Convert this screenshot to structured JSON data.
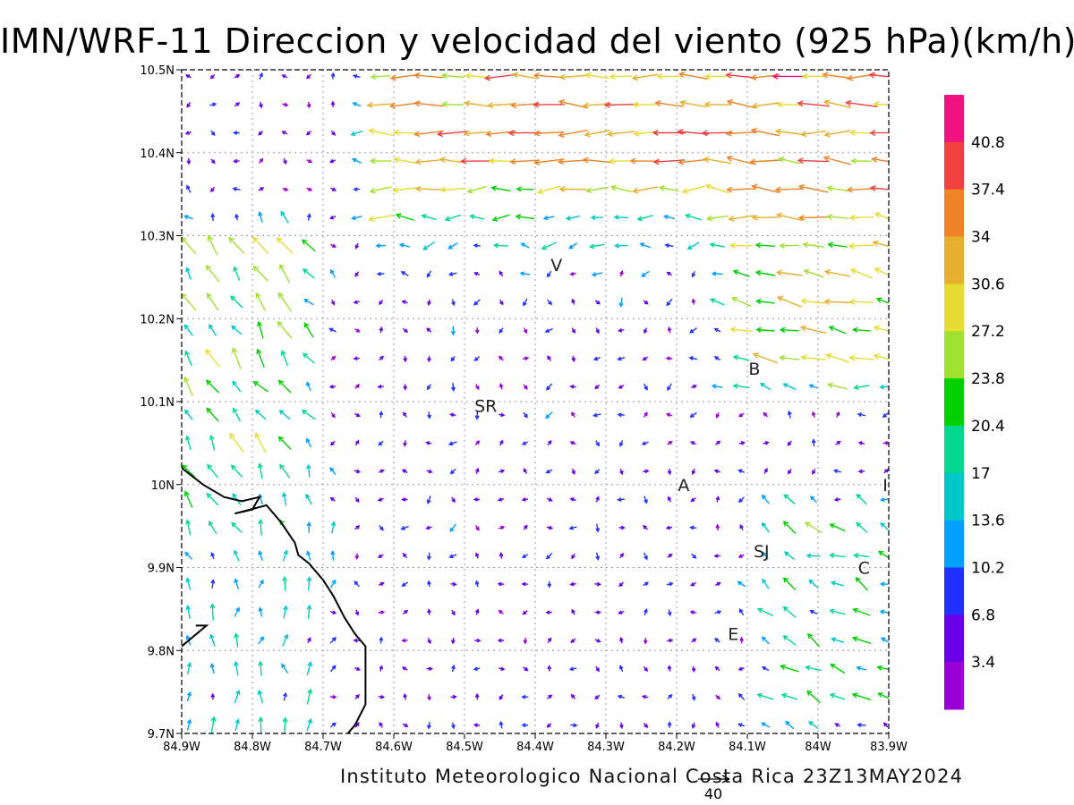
{
  "title": "IMN/WRF-11 Direccion y velocidad del viento (925 hPa)(km/h)",
  "credit": "Instituto Meteorologico Nacional Costa Rica 23Z13MAY2024",
  "reference_vector": {
    "label": "40"
  },
  "map": {
    "lon_min": -84.9,
    "lon_max": -83.9,
    "lat_min": 9.7,
    "lat_max": 10.5,
    "lon_ticks": [
      {
        "value": -84.9,
        "label": "84.9W"
      },
      {
        "value": -84.8,
        "label": "84.8W"
      },
      {
        "value": -84.7,
        "label": "84.7W"
      },
      {
        "value": -84.6,
        "label": "84.6W"
      },
      {
        "value": -84.5,
        "label": "84.5W"
      },
      {
        "value": -84.4,
        "label": "84.4W"
      },
      {
        "value": -84.3,
        "label": "84.3W"
      },
      {
        "value": -84.2,
        "label": "84.2W"
      },
      {
        "value": -84.1,
        "label": "84.1W"
      },
      {
        "value": -84.0,
        "label": "84W"
      },
      {
        "value": -83.9,
        "label": "83.9W"
      }
    ],
    "lat_ticks": [
      {
        "value": 9.7,
        "label": "9.7N"
      },
      {
        "value": 9.8,
        "label": "9.8N"
      },
      {
        "value": 9.9,
        "label": "9.9N"
      },
      {
        "value": 10.0,
        "label": "10N"
      },
      {
        "value": 10.1,
        "label": "10.1N"
      },
      {
        "value": 10.2,
        "label": "10.2N"
      },
      {
        "value": 10.3,
        "label": "10.3N"
      },
      {
        "value": 10.4,
        "label": "10.4N"
      },
      {
        "value": 10.5,
        "label": "10.5N"
      }
    ],
    "places": [
      {
        "label": "V",
        "lon": -84.37,
        "lat": 10.265
      },
      {
        "label": "B",
        "lon": -84.09,
        "lat": 10.14
      },
      {
        "label": "SR",
        "lon": -84.47,
        "lat": 10.095
      },
      {
        "label": "A",
        "lon": -84.19,
        "lat": 10.0
      },
      {
        "label": "I",
        "lon": -83.905,
        "lat": 10.0
      },
      {
        "label": "SJ",
        "lon": -84.08,
        "lat": 9.92
      },
      {
        "label": "C",
        "lon": -83.935,
        "lat": 9.9
      },
      {
        "label": "E",
        "lon": -84.12,
        "lat": 9.82
      }
    ],
    "coastline": [
      [
        -84.9,
        10.02
      ],
      [
        -84.87,
        10.0
      ],
      [
        -84.84,
        9.985
      ],
      [
        -84.815,
        9.98
      ],
      [
        -84.79,
        9.985
      ],
      [
        -84.8,
        9.97
      ],
      [
        -84.825,
        9.965
      ],
      [
        -84.78,
        9.975
      ],
      [
        -84.76,
        9.955
      ],
      [
        -84.74,
        9.93
      ],
      [
        -84.735,
        9.915
      ],
      [
        -84.72,
        9.905
      ],
      [
        -84.7,
        9.885
      ],
      [
        -84.685,
        9.865
      ],
      [
        -84.67,
        9.84
      ],
      [
        -84.655,
        9.82
      ],
      [
        -84.64,
        9.805
      ],
      [
        -84.64,
        9.76
      ],
      [
        -84.64,
        9.735
      ],
      [
        -84.655,
        9.71
      ],
      [
        -84.665,
        9.7
      ]
    ],
    "coastline_islet": [
      [
        -84.9,
        9.805
      ],
      [
        -84.865,
        9.83
      ],
      [
        -84.88,
        9.83
      ]
    ]
  },
  "colorbar": {
    "colors": [
      "#9a00d6",
      "#6a00e8",
      "#2030ff",
      "#00a0ff",
      "#00c8c8",
      "#00d890",
      "#00d000",
      "#a0e030",
      "#e6dc32",
      "#e6af2d",
      "#f08228",
      "#f04040",
      "#f0137f"
    ],
    "labels": [
      "3.4",
      "6.8",
      "10.2",
      "13.6",
      "17",
      "20.4",
      "23.8",
      "27.2",
      "30.6",
      "34",
      "37.4",
      "40.8"
    ]
  },
  "wind_field": {
    "units": "km/h",
    "grid_spacing_deg": 0.034,
    "regions": [
      {
        "lon_min": -84.9,
        "lon_max": -84.73,
        "lat_min": 9.7,
        "lat_max": 9.97,
        "u": 0.0,
        "v": 13,
        "note": "south-west coast, northward ~10-17"
      },
      {
        "lon_min": -84.9,
        "lon_max": -84.75,
        "lat_min": 9.97,
        "lat_max": 10.28,
        "u": -12,
        "v": 18,
        "note": "north-west, north-north-westward 17-30"
      },
      {
        "lon_min": -84.6,
        "lon_max": -83.9,
        "lat_min": 10.33,
        "lat_max": 10.5,
        "u": -34,
        "v": 0.5,
        "note": "north, strong westward 30-40"
      },
      {
        "lon_min": -84.1,
        "lon_max": -83.9,
        "lat_min": 10.15,
        "lat_max": 10.33,
        "u": -26,
        "v": 6,
        "note": "north-east, westward 23-34"
      },
      {
        "lon_min": -84.55,
        "lon_max": -84.2,
        "lat_min": 9.95,
        "lat_max": 10.3,
        "u": -2,
        "v": -3,
        "note": "central, weak variable ~3-10"
      },
      {
        "lon_min": -84.05,
        "lon_max": -83.9,
        "lat_min": 9.75,
        "lat_max": 9.95,
        "u": -15,
        "v": 8,
        "note": "south-east, north-westward 13-24"
      }
    ]
  }
}
